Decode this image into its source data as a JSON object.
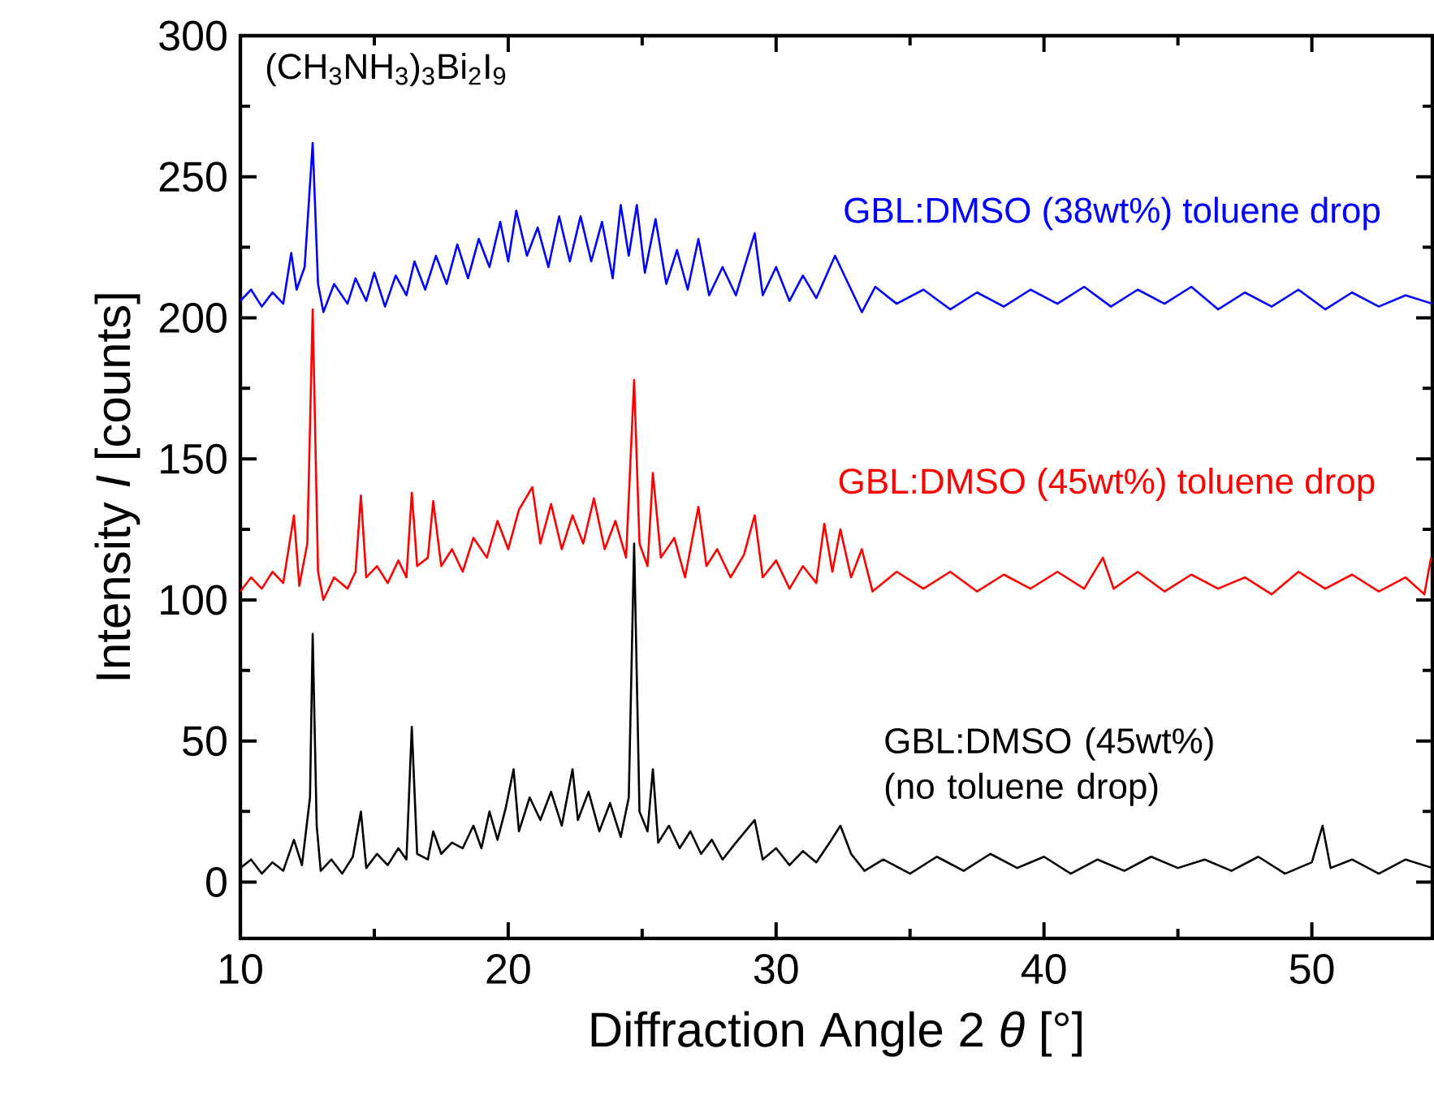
{
  "chart_data": {
    "type": "line",
    "xlabel": "Diffraction Angle 2 *θ* [°]",
    "ylabel": "Intensity *I* [counts]",
    "annotations": [
      "(CH$_{3}$NH$_{3}$)$_{3}$Bi$_{2}$I$_{9}$"
    ],
    "xlim": [
      10,
      54.5
    ],
    "xticks": [
      10,
      20,
      30,
      40,
      50
    ],
    "ylim": [
      -20,
      300
    ],
    "yticks": [
      0,
      50,
      100,
      150,
      200,
      250,
      300
    ],
    "legend": false,
    "line_style": "solid",
    "series": [
      {
        "name": "GBL:DMSO (38wt%) toluene drop",
        "color": "#0000ff",
        "x": [
          10,
          10.4,
          10.8,
          11.2,
          11.6,
          11.9,
          12.1,
          12.4,
          12.7,
          12.9,
          13.1,
          13.5,
          14.0,
          14.3,
          14.7,
          15.0,
          15.4,
          15.8,
          16.2,
          16.5,
          16.9,
          17.3,
          17.7,
          18.1,
          18.5,
          18.9,
          19.3,
          19.7,
          20.0,
          20.3,
          20.7,
          21.1,
          21.5,
          21.9,
          22.3,
          22.7,
          23.1,
          23.5,
          23.9,
          24.2,
          24.5,
          24.8,
          25.1,
          25.5,
          25.9,
          26.3,
          26.7,
          27.1,
          27.5,
          28.0,
          28.5,
          29.2,
          29.5,
          30.0,
          30.5,
          31.0,
          31.5,
          32.2,
          32.7,
          33.2,
          33.7,
          34.5,
          35.5,
          36.5,
          37.5,
          38.5,
          39.5,
          40.5,
          41.5,
          42.5,
          43.5,
          44.5,
          45.5,
          46.5,
          47.5,
          48.5,
          49.5,
          50.5,
          51.5,
          52.5,
          53.5,
          54.5
        ],
        "values": [
          206,
          210,
          204,
          209,
          205,
          223,
          210,
          218,
          262,
          212,
          202,
          212,
          205,
          214,
          206,
          216,
          204,
          215,
          208,
          220,
          210,
          222,
          212,
          226,
          214,
          228,
          218,
          234,
          220,
          238,
          222,
          232,
          218,
          236,
          220,
          236,
          220,
          234,
          214,
          240,
          222,
          240,
          216,
          235,
          212,
          224,
          210,
          228,
          208,
          218,
          208,
          230,
          208,
          218,
          206,
          215,
          207,
          222,
          212,
          202,
          211,
          205,
          210,
          203,
          209,
          204,
          210,
          205,
          211,
          204,
          210,
          205,
          211,
          203,
          209,
          204,
          210,
          203,
          209,
          204,
          208,
          205
        ]
      },
      {
        "name": "GBL:DMSO (45wt%) toluene drop",
        "color": "#ff0000",
        "x": [
          10,
          10.4,
          10.8,
          11.2,
          11.6,
          12.0,
          12.2,
          12.5,
          12.7,
          12.9,
          13.1,
          13.5,
          14.0,
          14.3,
          14.5,
          14.7,
          15.1,
          15.5,
          15.9,
          16.2,
          16.4,
          16.6,
          17.0,
          17.2,
          17.5,
          17.9,
          18.3,
          18.7,
          19.2,
          19.6,
          20.0,
          20.4,
          20.9,
          21.2,
          21.6,
          22.0,
          22.4,
          22.8,
          23.2,
          23.6,
          24.0,
          24.4,
          24.7,
          24.9,
          25.2,
          25.4,
          25.7,
          26.2,
          26.6,
          27.1,
          27.4,
          27.8,
          28.3,
          28.8,
          29.2,
          29.5,
          30.0,
          30.5,
          31.0,
          31.5,
          31.8,
          32.1,
          32.4,
          32.8,
          33.2,
          33.6,
          34.5,
          35.5,
          36.5,
          37.5,
          38.5,
          39.5,
          40.5,
          41.5,
          42.2,
          42.6,
          43.5,
          44.5,
          45.5,
          46.5,
          47.5,
          48.5,
          49.5,
          50.5,
          51.5,
          52.5,
          53.5,
          54.2,
          54.45
        ],
        "values": [
          103,
          108,
          104,
          110,
          106,
          130,
          105,
          120,
          203,
          110,
          100,
          108,
          104,
          110,
          137,
          108,
          112,
          106,
          114,
          108,
          138,
          112,
          115,
          135,
          112,
          118,
          110,
          122,
          115,
          128,
          118,
          132,
          140,
          120,
          134,
          118,
          130,
          120,
          136,
          118,
          128,
          115,
          178,
          120,
          112,
          145,
          115,
          122,
          108,
          133,
          112,
          118,
          108,
          116,
          130,
          108,
          114,
          104,
          112,
          106,
          127,
          110,
          125,
          108,
          118,
          103,
          110,
          104,
          110,
          103,
          109,
          104,
          110,
          104,
          115,
          104,
          110,
          103,
          109,
          104,
          108,
          102,
          110,
          104,
          109,
          103,
          108,
          102,
          115
        ]
      },
      {
        "name": "GBL:DMSO (45wt%) (no toluene drop)",
        "color": "#000000",
        "x": [
          10,
          10.4,
          10.8,
          11.2,
          11.6,
          12.0,
          12.3,
          12.6,
          12.7,
          12.85,
          13.0,
          13.4,
          13.8,
          14.2,
          14.5,
          14.7,
          15.1,
          15.5,
          15.9,
          16.2,
          16.4,
          16.6,
          17.0,
          17.2,
          17.5,
          17.9,
          18.3,
          18.7,
          19.0,
          19.3,
          19.6,
          19.9,
          20.2,
          20.4,
          20.8,
          21.2,
          21.6,
          22.0,
          22.4,
          22.6,
          23.0,
          23.4,
          23.8,
          24.2,
          24.5,
          24.7,
          24.9,
          25.2,
          25.4,
          25.6,
          26.0,
          26.4,
          26.8,
          27.2,
          27.6,
          28.0,
          28.5,
          29.2,
          29.5,
          30.0,
          30.5,
          31.0,
          31.5,
          32.0,
          32.4,
          32.8,
          33.3,
          34.0,
          35,
          36,
          37,
          38,
          39,
          40,
          41,
          42,
          43,
          44,
          45,
          46,
          47,
          48,
          49,
          50,
          50.4,
          50.7,
          51.5,
          52.5,
          53.5,
          54.5
        ],
        "values": [
          5,
          8,
          3,
          7,
          4,
          15,
          6,
          30,
          88,
          20,
          4,
          8,
          3,
          9,
          25,
          5,
          10,
          6,
          12,
          8,
          55,
          10,
          8,
          18,
          10,
          14,
          12,
          20,
          12,
          25,
          15,
          26,
          40,
          18,
          30,
          22,
          32,
          20,
          40,
          22,
          32,
          18,
          28,
          16,
          30,
          120,
          25,
          18,
          40,
          14,
          20,
          12,
          18,
          10,
          15,
          8,
          14,
          22,
          8,
          12,
          6,
          11,
          7,
          14,
          20,
          10,
          4,
          8,
          3,
          9,
          4,
          10,
          5,
          9,
          3,
          8,
          4,
          9,
          5,
          8,
          4,
          9,
          3,
          7,
          20,
          5,
          8,
          3,
          8,
          5
        ]
      }
    ]
  }
}
